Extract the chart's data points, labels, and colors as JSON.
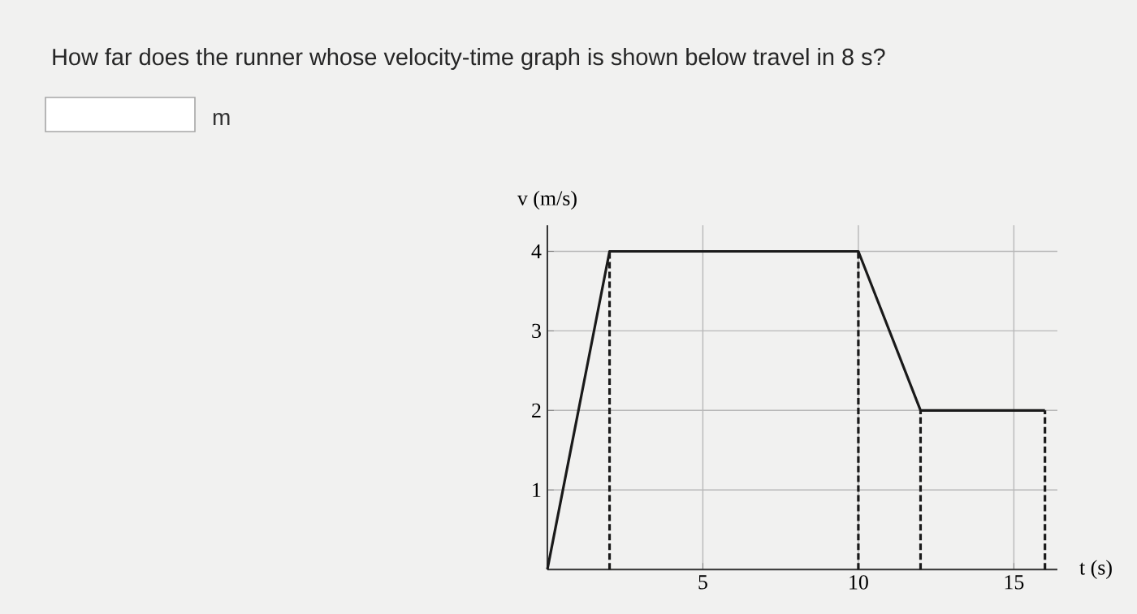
{
  "chart_data": {
    "type": "line",
    "title": "How far does the runner whose velocity-time graph is shown below travel in 8 s?",
    "annotations": [
      "m"
    ],
    "xlabel": "t (s)",
    "ylabel": "v (m/s)",
    "x": [
      0,
      2,
      10,
      12,
      16
    ],
    "series": [
      {
        "color": "#1a1a1a",
        "values": [
          0,
          4,
          4,
          2,
          2
        ]
      }
    ],
    "xlim": [
      0,
      16.4
    ],
    "ylim": [
      0,
      4.33
    ],
    "xticks": [
      5,
      10,
      15
    ],
    "yticks": [
      1,
      2,
      3,
      4
    ],
    "grid": true,
    "marker": "none",
    "line_style": "solid",
    "ref_lines": [
      {
        "axis": "x",
        "value": 2,
        "line_style": "dashed"
      },
      {
        "axis": "x",
        "value": 10,
        "line_style": "dashed"
      },
      {
        "axis": "x",
        "value": 12,
        "line_style": "dashed"
      },
      {
        "axis": "x",
        "value": 16,
        "line_style": "dashed"
      }
    ]
  }
}
